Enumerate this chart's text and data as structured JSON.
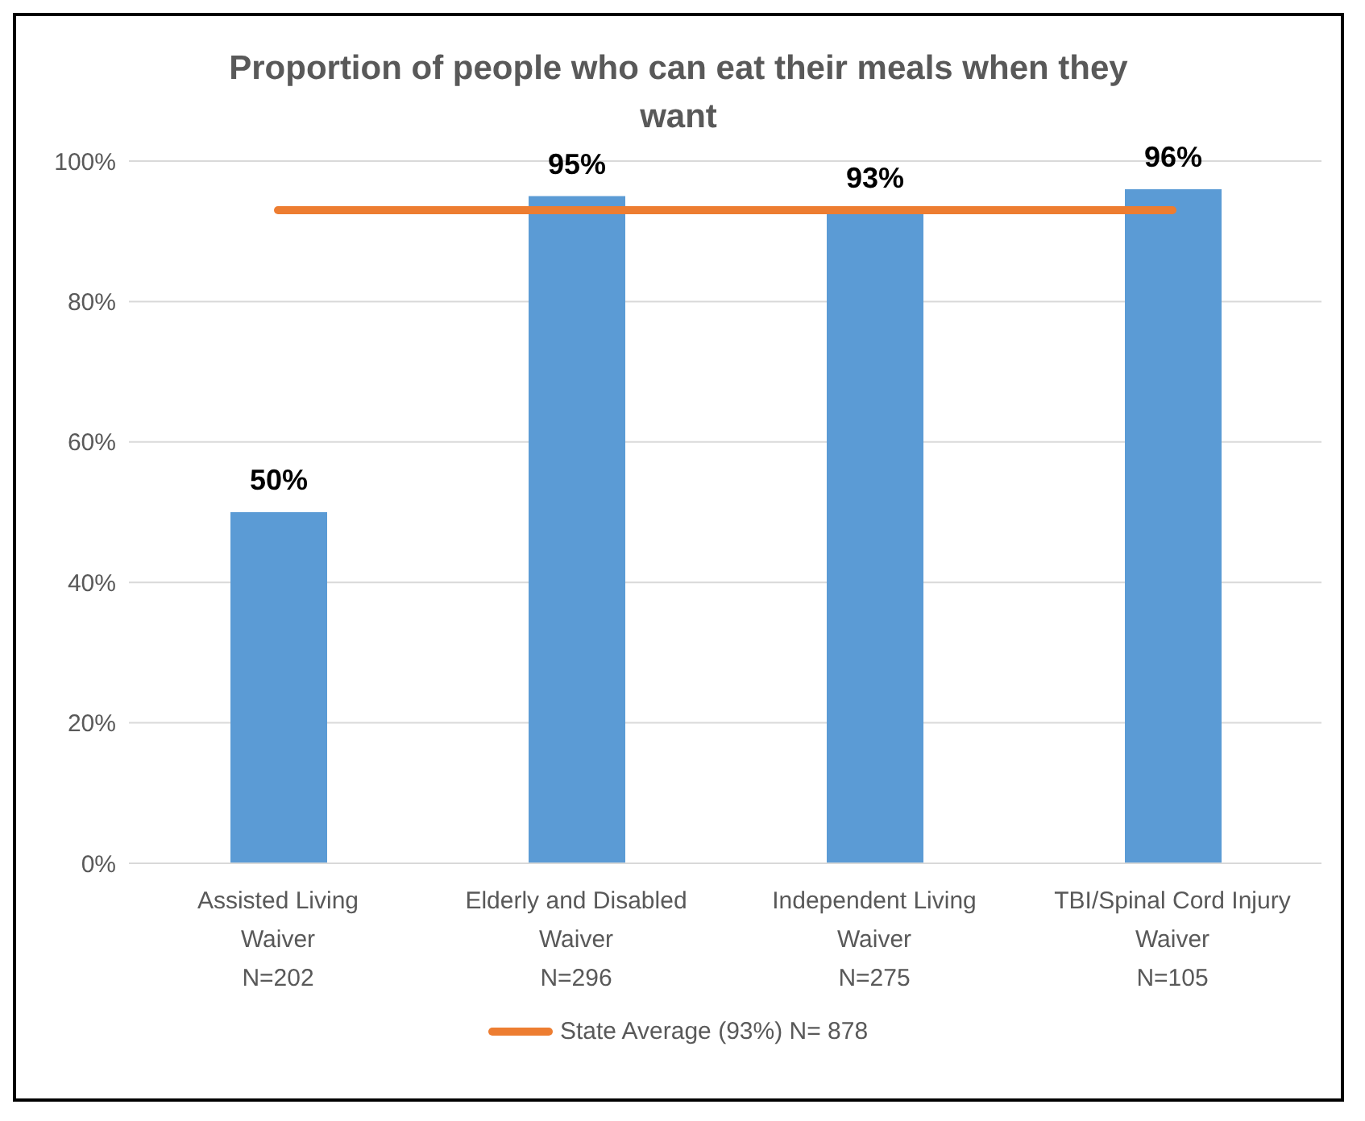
{
  "chart_data": {
    "type": "bar",
    "title": "Proportion of people who can eat their meals when they want",
    "categories": [
      "Assisted Living\nWaiver\nN=202",
      "Elderly and Disabled\nWaiver\nN=296",
      "Independent Living\nWaiver\nN=275",
      "TBI/Spinal Cord Injury\nWaiver\nN=105"
    ],
    "series": [
      {
        "color": "#5b9bd5",
        "values": [
          50,
          95,
          93,
          96
        ],
        "value_labels": [
          "50%",
          "95%",
          "93%",
          "96%"
        ]
      },
      {
        "type": "line",
        "name": "State Average (93%) N= 878",
        "color": "#ed7d31",
        "values": [
          93,
          93,
          93,
          93
        ],
        "marker": "none"
      }
    ],
    "ylim": [
      0,
      100
    ],
    "yticks": [
      {
        "value": 0,
        "label": "0%"
      },
      {
        "value": 20,
        "label": "20%"
      },
      {
        "value": 40,
        "label": "40%"
      },
      {
        "value": 60,
        "label": "60%"
      },
      {
        "value": 80,
        "label": "80%"
      },
      {
        "value": 100,
        "label": "100%"
      }
    ],
    "grid": "y",
    "legend": "bottom"
  }
}
